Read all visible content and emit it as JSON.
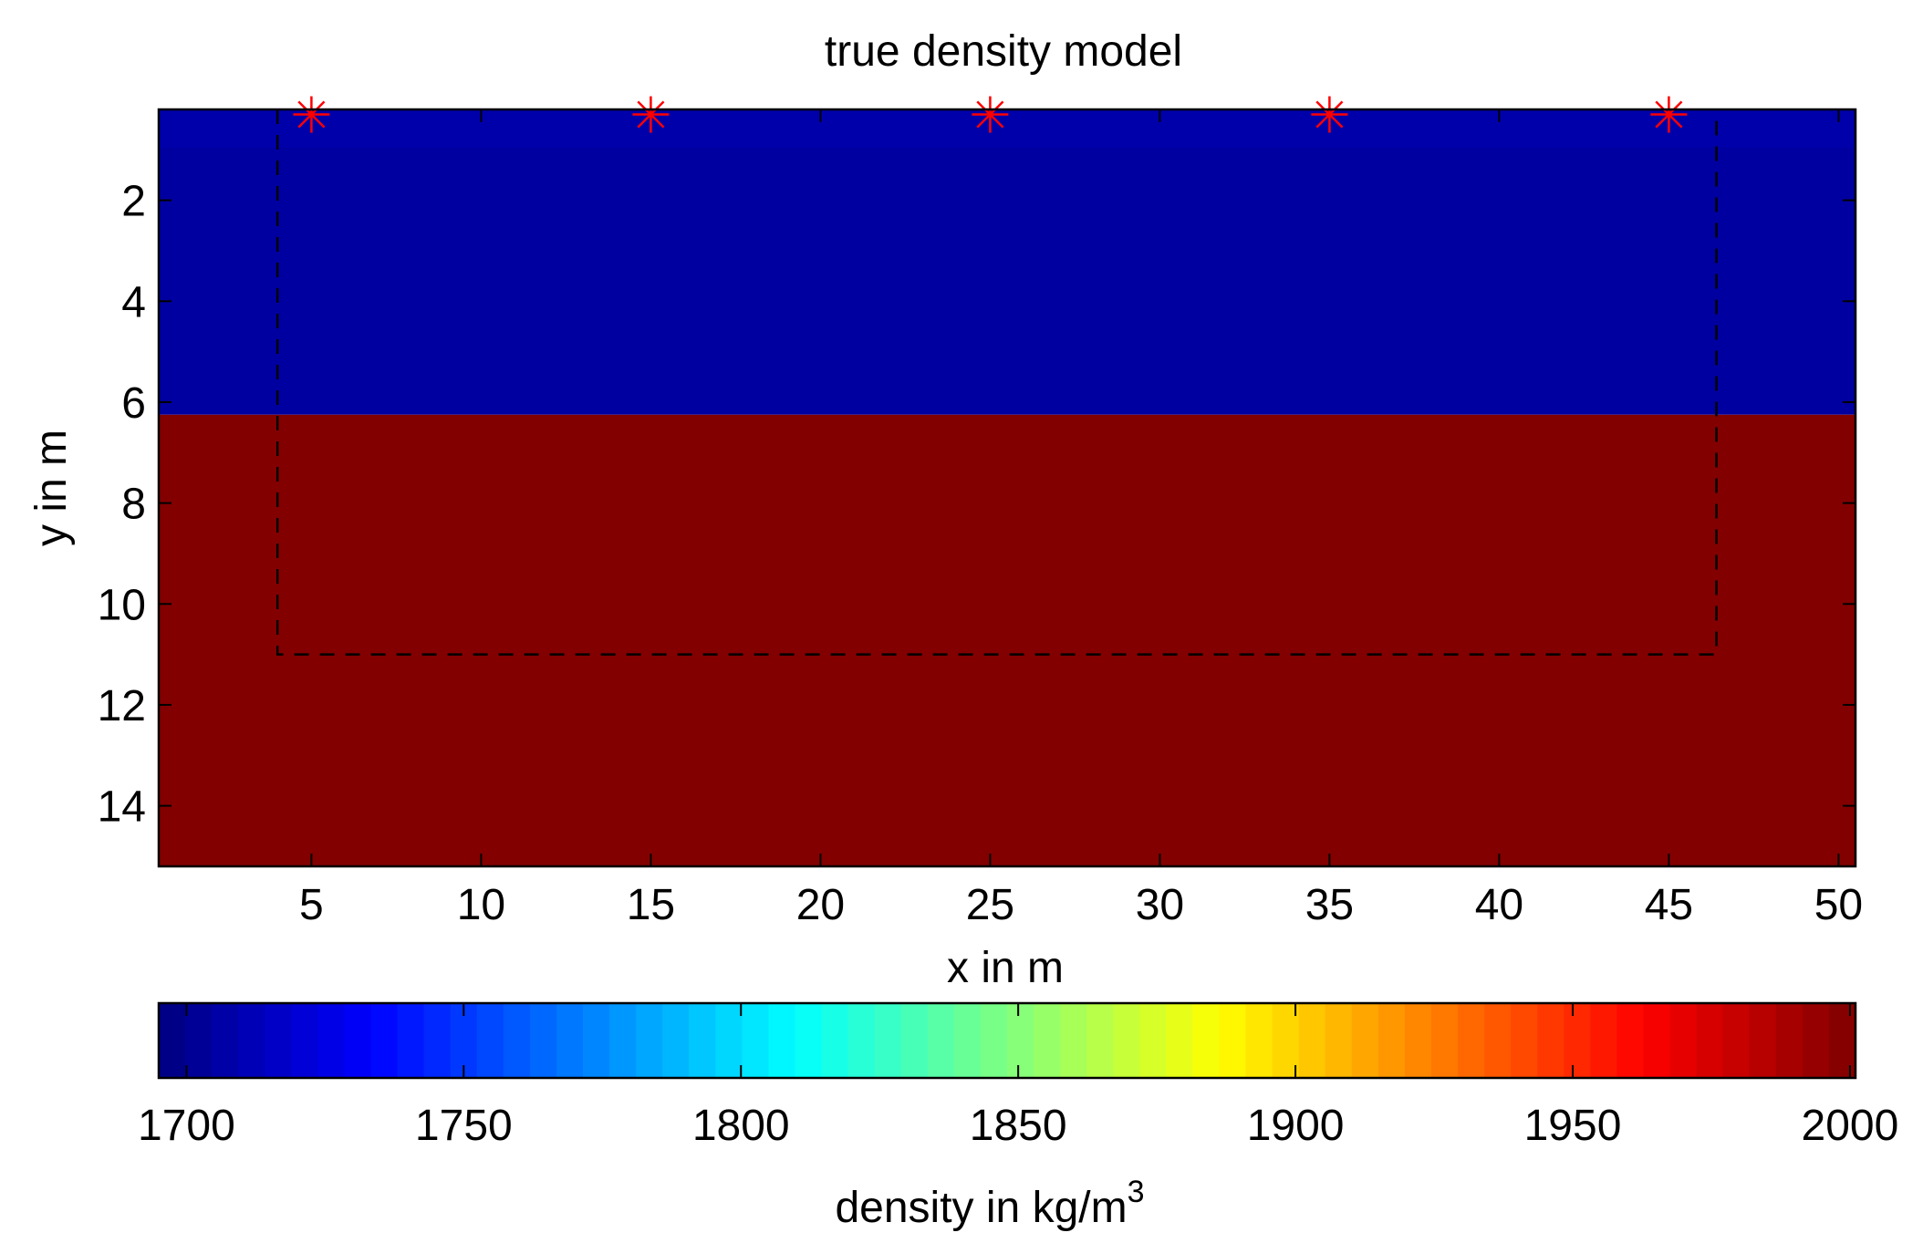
{
  "chart_data": {
    "type": "heatmap",
    "title": "true density model",
    "xlabel": "x in m",
    "ylabel": "y in m",
    "xlim": [
      0.5,
      50.5
    ],
    "ylim": [
      15.2,
      0.2
    ],
    "y_reversed": true,
    "xticks": [
      5,
      10,
      15,
      20,
      25,
      30,
      35,
      40,
      45,
      50
    ],
    "yticks": [
      2,
      4,
      6,
      8,
      10,
      12,
      14
    ],
    "layers": [
      {
        "y_from": 0.2,
        "y_to": 0.95,
        "density": 1708
      },
      {
        "y_from": 0.95,
        "y_to": 6.25,
        "density": 1705
      },
      {
        "y_from": 6.25,
        "y_to": 15.2,
        "density": 2000
      }
    ],
    "sources": {
      "x": [
        5,
        15,
        25,
        35,
        45
      ],
      "y": 0.3,
      "marker": "asterisk",
      "color": "#ff0000"
    },
    "region_box": {
      "x": [
        4,
        46.4
      ],
      "y": [
        0.2,
        11
      ],
      "style": "dashed",
      "color": "#000000"
    },
    "colorbar": {
      "label": "density in kg/m",
      "label_superscript": "3",
      "clim": [
        1695,
        2001
      ],
      "ticks": [
        1700,
        1750,
        1800,
        1850,
        1900,
        1950,
        2000
      ],
      "colormap": "jet",
      "levels": 64
    }
  }
}
